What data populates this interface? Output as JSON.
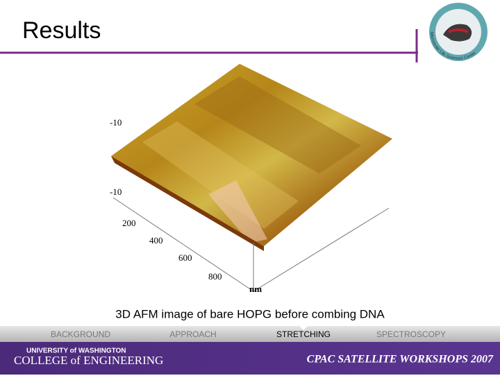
{
  "header": {
    "title": "Results",
    "logo_text": "Microscale Life Sciences Center"
  },
  "figure": {
    "axis_labels": [
      "-10",
      "-10",
      "200",
      "400",
      "600",
      "800",
      "nm"
    ],
    "caption": "3D AFM image of bare HOPG before combing DNA"
  },
  "nav": {
    "items": [
      "BACKGROUND",
      "APPROACH",
      "STRETCHING",
      "SPECTROSCOPY"
    ],
    "active": 2
  },
  "footer": {
    "university": "UNIVERSITY of WASHINGTON",
    "college": "COLLEGE of ENGINEERING",
    "event": "CPAC SATELLITE WORKSHOPS 2007"
  }
}
